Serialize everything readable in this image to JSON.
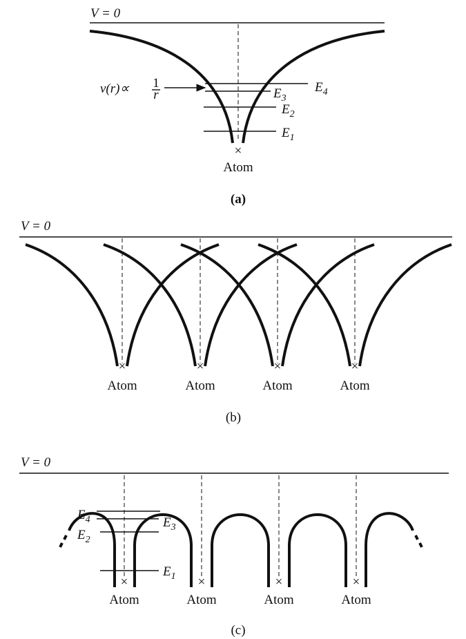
{
  "panels": [
    {
      "v_label": "V = 0",
      "potential_label": {
        "prefix": "v(r)∝",
        "numerator": "1",
        "denominator": "r"
      },
      "levels": [
        {
          "symbol": "E",
          "sub": "4"
        },
        {
          "symbol": "E",
          "sub": "3"
        },
        {
          "symbol": "E",
          "sub": "2"
        },
        {
          "symbol": "E",
          "sub": "1"
        }
      ],
      "atoms": [
        "Atom"
      ],
      "label": "(a)"
    },
    {
      "v_label": "V = 0",
      "atoms": [
        "Atom",
        "Atom",
        "Atom",
        "Atom"
      ],
      "label": "(b)"
    },
    {
      "v_label": "V = 0",
      "levels": [
        {
          "symbol": "E",
          "sub": "4"
        },
        {
          "symbol": "E",
          "sub": "3"
        },
        {
          "symbol": "E",
          "sub": "2"
        },
        {
          "symbol": "E",
          "sub": "1"
        }
      ],
      "atoms": [
        "Atom",
        "Atom",
        "Atom",
        "Atom"
      ],
      "label": "(c)"
    }
  ]
}
